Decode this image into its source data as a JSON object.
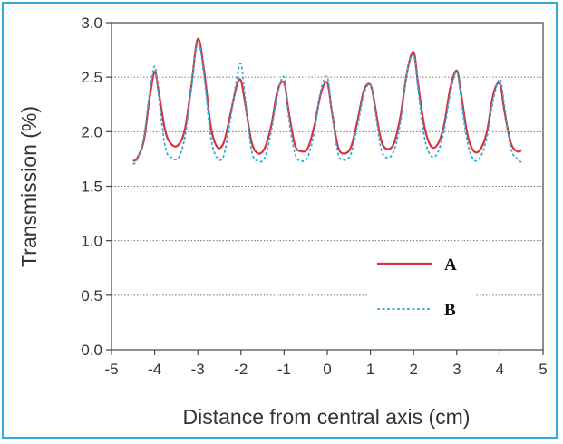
{
  "chart_data": {
    "type": "line",
    "title": "",
    "xlabel": "Distance from central axis (cm)",
    "ylabel": "Transmission (%)",
    "xlim": [
      -5,
      5
    ],
    "ylim": [
      0.0,
      3.0
    ],
    "x_ticks": [
      "-5",
      "-4",
      "-3",
      "-2",
      "-1",
      "0",
      "1",
      "2",
      "3",
      "4",
      "5"
    ],
    "y_ticks": [
      "0.0",
      "0.5",
      "1.0",
      "1.5",
      "2.0",
      "2.5",
      "3.0"
    ],
    "grid": "horizontal dotted",
    "legend_position": "right-center",
    "series": [
      {
        "name": "A",
        "color": "#d8323c",
        "style": "solid",
        "x": [
          -4.5,
          -4.4,
          -4.25,
          -4.12,
          -4.0,
          -3.9,
          -3.75,
          -3.6,
          -3.45,
          -3.3,
          -3.15,
          -3.0,
          -2.85,
          -2.7,
          -2.55,
          -2.4,
          -2.25,
          -2.1,
          -2.0,
          -1.9,
          -1.75,
          -1.6,
          -1.45,
          -1.3,
          -1.15,
          -1.0,
          -0.9,
          -0.75,
          -0.6,
          -0.45,
          -0.3,
          -0.15,
          0.0,
          0.1,
          0.25,
          0.4,
          0.55,
          0.7,
          0.85,
          1.0,
          1.1,
          1.25,
          1.4,
          1.55,
          1.7,
          1.85,
          2.0,
          2.1,
          2.25,
          2.4,
          2.55,
          2.7,
          2.85,
          3.0,
          3.1,
          3.25,
          3.4,
          3.55,
          3.7,
          3.85,
          4.0,
          4.1,
          4.25,
          4.4,
          4.5
        ],
        "values": [
          1.73,
          1.76,
          1.92,
          2.3,
          2.55,
          2.35,
          2.0,
          1.88,
          1.88,
          2.02,
          2.42,
          2.85,
          2.55,
          2.05,
          1.86,
          1.9,
          2.15,
          2.42,
          2.47,
          2.25,
          1.9,
          1.8,
          1.85,
          2.05,
          2.38,
          2.45,
          2.2,
          1.88,
          1.82,
          1.85,
          2.05,
          2.35,
          2.45,
          2.2,
          1.86,
          1.8,
          1.86,
          2.1,
          2.38,
          2.43,
          2.25,
          1.92,
          1.84,
          1.9,
          2.15,
          2.55,
          2.73,
          2.45,
          2.05,
          1.87,
          1.88,
          2.05,
          2.4,
          2.56,
          2.35,
          1.97,
          1.82,
          1.84,
          2.0,
          2.35,
          2.44,
          2.2,
          1.9,
          1.82,
          1.83
        ]
      },
      {
        "name": "B",
        "color": "#2aaedc",
        "style": "dotted",
        "x": [
          -4.5,
          -4.4,
          -4.25,
          -4.12,
          -4.0,
          -3.9,
          -3.75,
          -3.6,
          -3.45,
          -3.3,
          -3.15,
          -3.0,
          -2.85,
          -2.7,
          -2.55,
          -2.4,
          -2.25,
          -2.1,
          -2.0,
          -1.9,
          -1.75,
          -1.6,
          -1.45,
          -1.3,
          -1.15,
          -1.0,
          -0.9,
          -0.75,
          -0.6,
          -0.45,
          -0.3,
          -0.15,
          0.0,
          0.1,
          0.25,
          0.4,
          0.55,
          0.7,
          0.85,
          1.0,
          1.1,
          1.25,
          1.4,
          1.55,
          1.7,
          1.85,
          2.0,
          2.1,
          2.25,
          2.4,
          2.55,
          2.7,
          2.85,
          3.0,
          3.1,
          3.25,
          3.4,
          3.55,
          3.7,
          3.85,
          4.0,
          4.1,
          4.25,
          4.4,
          4.5
        ],
        "values": [
          1.7,
          1.75,
          1.95,
          2.35,
          2.6,
          2.3,
          1.85,
          1.76,
          1.76,
          1.95,
          2.4,
          2.82,
          2.5,
          1.95,
          1.76,
          1.78,
          2.1,
          2.48,
          2.62,
          2.3,
          1.82,
          1.73,
          1.76,
          2.0,
          2.35,
          2.5,
          2.15,
          1.8,
          1.73,
          1.77,
          2.0,
          2.38,
          2.5,
          2.2,
          1.8,
          1.74,
          1.8,
          2.05,
          2.35,
          2.43,
          2.22,
          1.84,
          1.76,
          1.83,
          2.1,
          2.55,
          2.7,
          2.4,
          1.95,
          1.78,
          1.8,
          2.0,
          2.35,
          2.55,
          2.3,
          1.9,
          1.74,
          1.77,
          1.95,
          2.3,
          2.48,
          2.25,
          1.85,
          1.75,
          1.72
        ]
      }
    ]
  }
}
